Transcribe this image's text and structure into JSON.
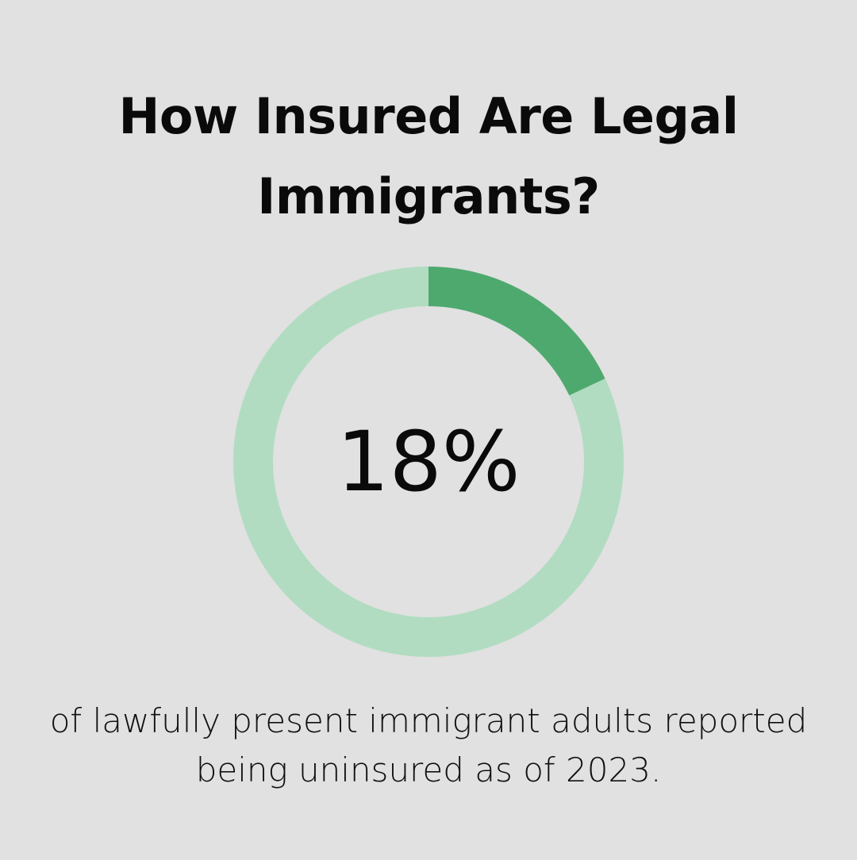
{
  "title": "How Insured Are Legal Immigrants?",
  "caption": "of lawfully present immigrant adults reported being uninsured as of 2023.",
  "colors": {
    "background": "#e0e1e0",
    "highlight": "#4ea96e",
    "track": "#b1dcc1",
    "text": "#0a0a0a"
  },
  "chart_data": {
    "type": "pie",
    "style": "donut",
    "center_label": "18%",
    "slices": [
      {
        "value": 18,
        "color": "#4ea96e"
      },
      {
        "value": 82,
        "color": "#b1dcc1"
      }
    ]
  }
}
